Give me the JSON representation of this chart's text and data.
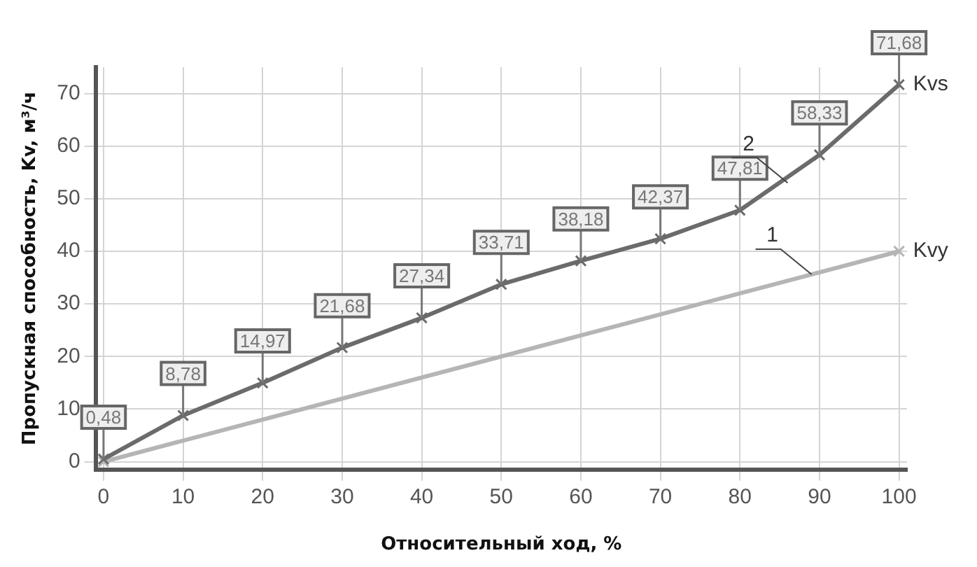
{
  "chart_data": {
    "type": "line",
    "xlabel": "Относительный ход, %",
    "ylabel": "Пропускная способность, Kv, м³/ч",
    "xlim": [
      -1,
      101
    ],
    "ylim": [
      -1.5,
      75
    ],
    "xticks": [
      0,
      10,
      20,
      30,
      40,
      50,
      60,
      70,
      80,
      90,
      100
    ],
    "yticks": [
      0,
      10,
      20,
      30,
      40,
      50,
      60,
      70
    ],
    "grid": true,
    "marker": "cross",
    "line_style": "solid",
    "series": [
      {
        "name": "Kvs",
        "color": "#6b6b6b",
        "x": [
          0,
          10,
          20,
          30,
          40,
          50,
          60,
          70,
          80,
          90,
          100
        ],
        "values": [
          0.48,
          8.78,
          14.97,
          21.68,
          27.34,
          33.71,
          38.18,
          42.37,
          47.81,
          58.33,
          71.68
        ],
        "value_labels": [
          "0,48",
          "8,78",
          "14,97",
          "21,68",
          "27,34",
          "33,71",
          "38,18",
          "42,37",
          "47,81",
          "58,33",
          "71,68"
        ]
      },
      {
        "name": "Kvy",
        "color": "#b5b5b5",
        "x": [
          0,
          100
        ],
        "values": [
          0,
          40
        ]
      }
    ],
    "annotations": [
      {
        "text": "2",
        "x": 86,
        "y": 53
      },
      {
        "text": "1",
        "x": 89,
        "y": 35.6
      }
    ]
  }
}
